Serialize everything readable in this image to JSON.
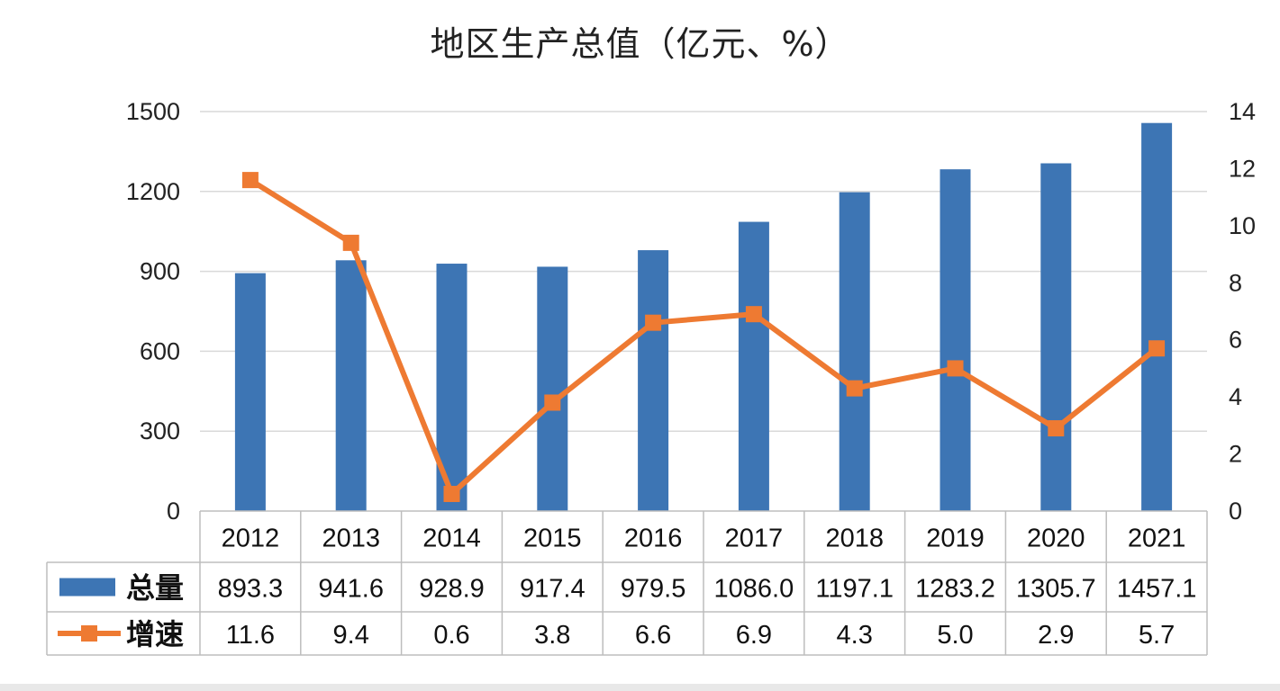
{
  "chart_data": {
    "type": "bar",
    "title": "地区生产总值（亿元、%）",
    "categories": [
      "2012",
      "2013",
      "2014",
      "2015",
      "2016",
      "2017",
      "2018",
      "2019",
      "2020",
      "2021"
    ],
    "series": [
      {
        "name": "总量",
        "type": "bar",
        "axis": "left",
        "color": "#3d75b4",
        "values": [
          893.3,
          941.6,
          928.9,
          917.4,
          979.5,
          1086.0,
          1197.1,
          1283.2,
          1305.7,
          1457.1
        ],
        "labels": [
          "893.3",
          "941.6",
          "928.9",
          "917.4",
          "979.5",
          "1086.0",
          "1197.1",
          "1283.2",
          "1305.7",
          "1457.1"
        ]
      },
      {
        "name": "增速",
        "type": "line",
        "axis": "right",
        "color": "#ee7a32",
        "marker": "square",
        "values": [
          11.6,
          9.4,
          0.6,
          3.8,
          6.6,
          6.9,
          4.3,
          5.0,
          2.9,
          5.7
        ],
        "labels": [
          "11.6",
          "9.4",
          "0.6",
          "3.8",
          "6.6",
          "6.9",
          "4.3",
          "5.0",
          "2.9",
          "5.7"
        ]
      }
    ],
    "y_left": {
      "ylim": [
        0,
        1500
      ],
      "ticks": [
        "0",
        "300",
        "600",
        "900",
        "1200",
        "1500"
      ]
    },
    "y_right": {
      "ylim": [
        0,
        14
      ],
      "ticks": [
        "0",
        "2",
        "4",
        "6",
        "8",
        "10",
        "12",
        "14"
      ]
    },
    "grid": true,
    "legend": "data-table-left"
  }
}
